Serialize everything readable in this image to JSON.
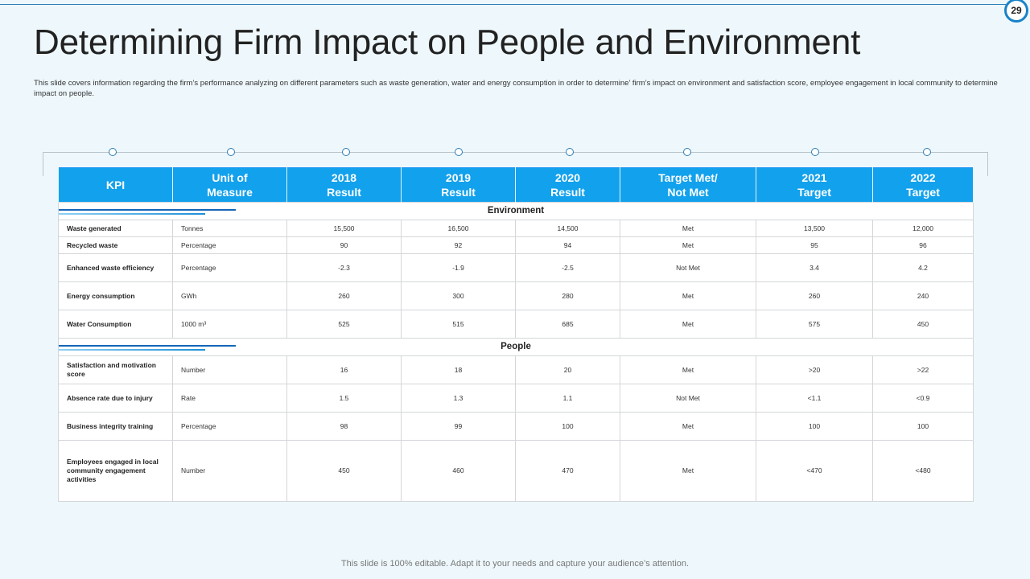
{
  "page_number": "29",
  "title": "Determining Firm Impact on People and Environment",
  "subtitle": "This slide covers information regarding the firm’s performance analyzing on different parameters such as waste generation, water and energy consumption in order to determine’ firm’s impact on environment and satisfaction score, employee engagement in local community to determine impact on people.",
  "table": {
    "headers": [
      [
        "KPI"
      ],
      [
        "Unit of",
        "Measure"
      ],
      [
        "2018",
        "Result"
      ],
      [
        "2019",
        "Result"
      ],
      [
        "2020",
        "Result"
      ],
      [
        "Target Met/",
        "Not Met"
      ],
      [
        "2021",
        "Target"
      ],
      [
        "2022",
        "Target"
      ]
    ],
    "sections": [
      {
        "title": "Environment",
        "rows": [
          {
            "kpi": "Waste generated",
            "unit": "Tonnes",
            "r2018": "15,500",
            "r2019": "16,500",
            "r2020": "14,500",
            "met": "Met",
            "t2021": "13,500",
            "t2022": "12,000",
            "h": 21
          },
          {
            "kpi": "Recycled waste",
            "unit": "Percentage",
            "r2018": "90",
            "r2019": "92",
            "r2020": "94",
            "met": "Met",
            "t2021": "95",
            "t2022": "96",
            "h": 21
          },
          {
            "kpi": "Enhanced waste efficiency",
            "unit": "Percentage",
            "r2018": "-2.3",
            "r2019": "-1.9",
            "r2020": "-2.5",
            "met": "Not Met",
            "t2021": "3.4",
            "t2022": "4.2",
            "h": 35
          },
          {
            "kpi": "Energy consumption",
            "unit": "GWh",
            "r2018": "260",
            "r2019": "300",
            "r2020": "280",
            "met": "Met",
            "t2021": "260",
            "t2022": "240",
            "h": 35
          },
          {
            "kpi": "Water Consumption",
            "unit": "1000 m³",
            "r2018": "525",
            "r2019": "515",
            "r2020": "685",
            "met": "Met",
            "t2021": "575",
            "t2022": "450",
            "h": 35
          }
        ]
      },
      {
        "title": "People",
        "rows": [
          {
            "kpi": "Satisfaction and motivation score",
            "unit": "Number",
            "r2018": "16",
            "r2019": "18",
            "r2020": "20",
            "met": "Met",
            "t2021": ">20",
            "t2022": ">22",
            "h": 35
          },
          {
            "kpi": "Absence rate due to injury",
            "unit": "Rate",
            "r2018": "1.5",
            "r2019": "1.3",
            "r2020": "1.1",
            "met": "Not Met",
            "t2021": "<1.1",
            "t2022": "<0.9",
            "h": 35
          },
          {
            "kpi": "Business integrity training",
            "unit": "Percentage",
            "r2018": "98",
            "r2019": "99",
            "r2020": "100",
            "met": "Met",
            "t2021": "100",
            "t2022": "100",
            "h": 35
          },
          {
            "kpi": "Employees engaged in local community engagement activities",
            "unit": "Number",
            "r2018": "450",
            "r2019": "460",
            "r2020": "470",
            "met": "Met",
            "t2021": "<470",
            "t2022": "<480",
            "h": 76
          }
        ]
      }
    ]
  },
  "footer": "This slide is 100% editable. Adapt it to your needs and capture your audience’s attention.",
  "colors": {
    "header_bg": "#12a1ec",
    "accent": "#1466b8",
    "background": "#eef8fc"
  }
}
